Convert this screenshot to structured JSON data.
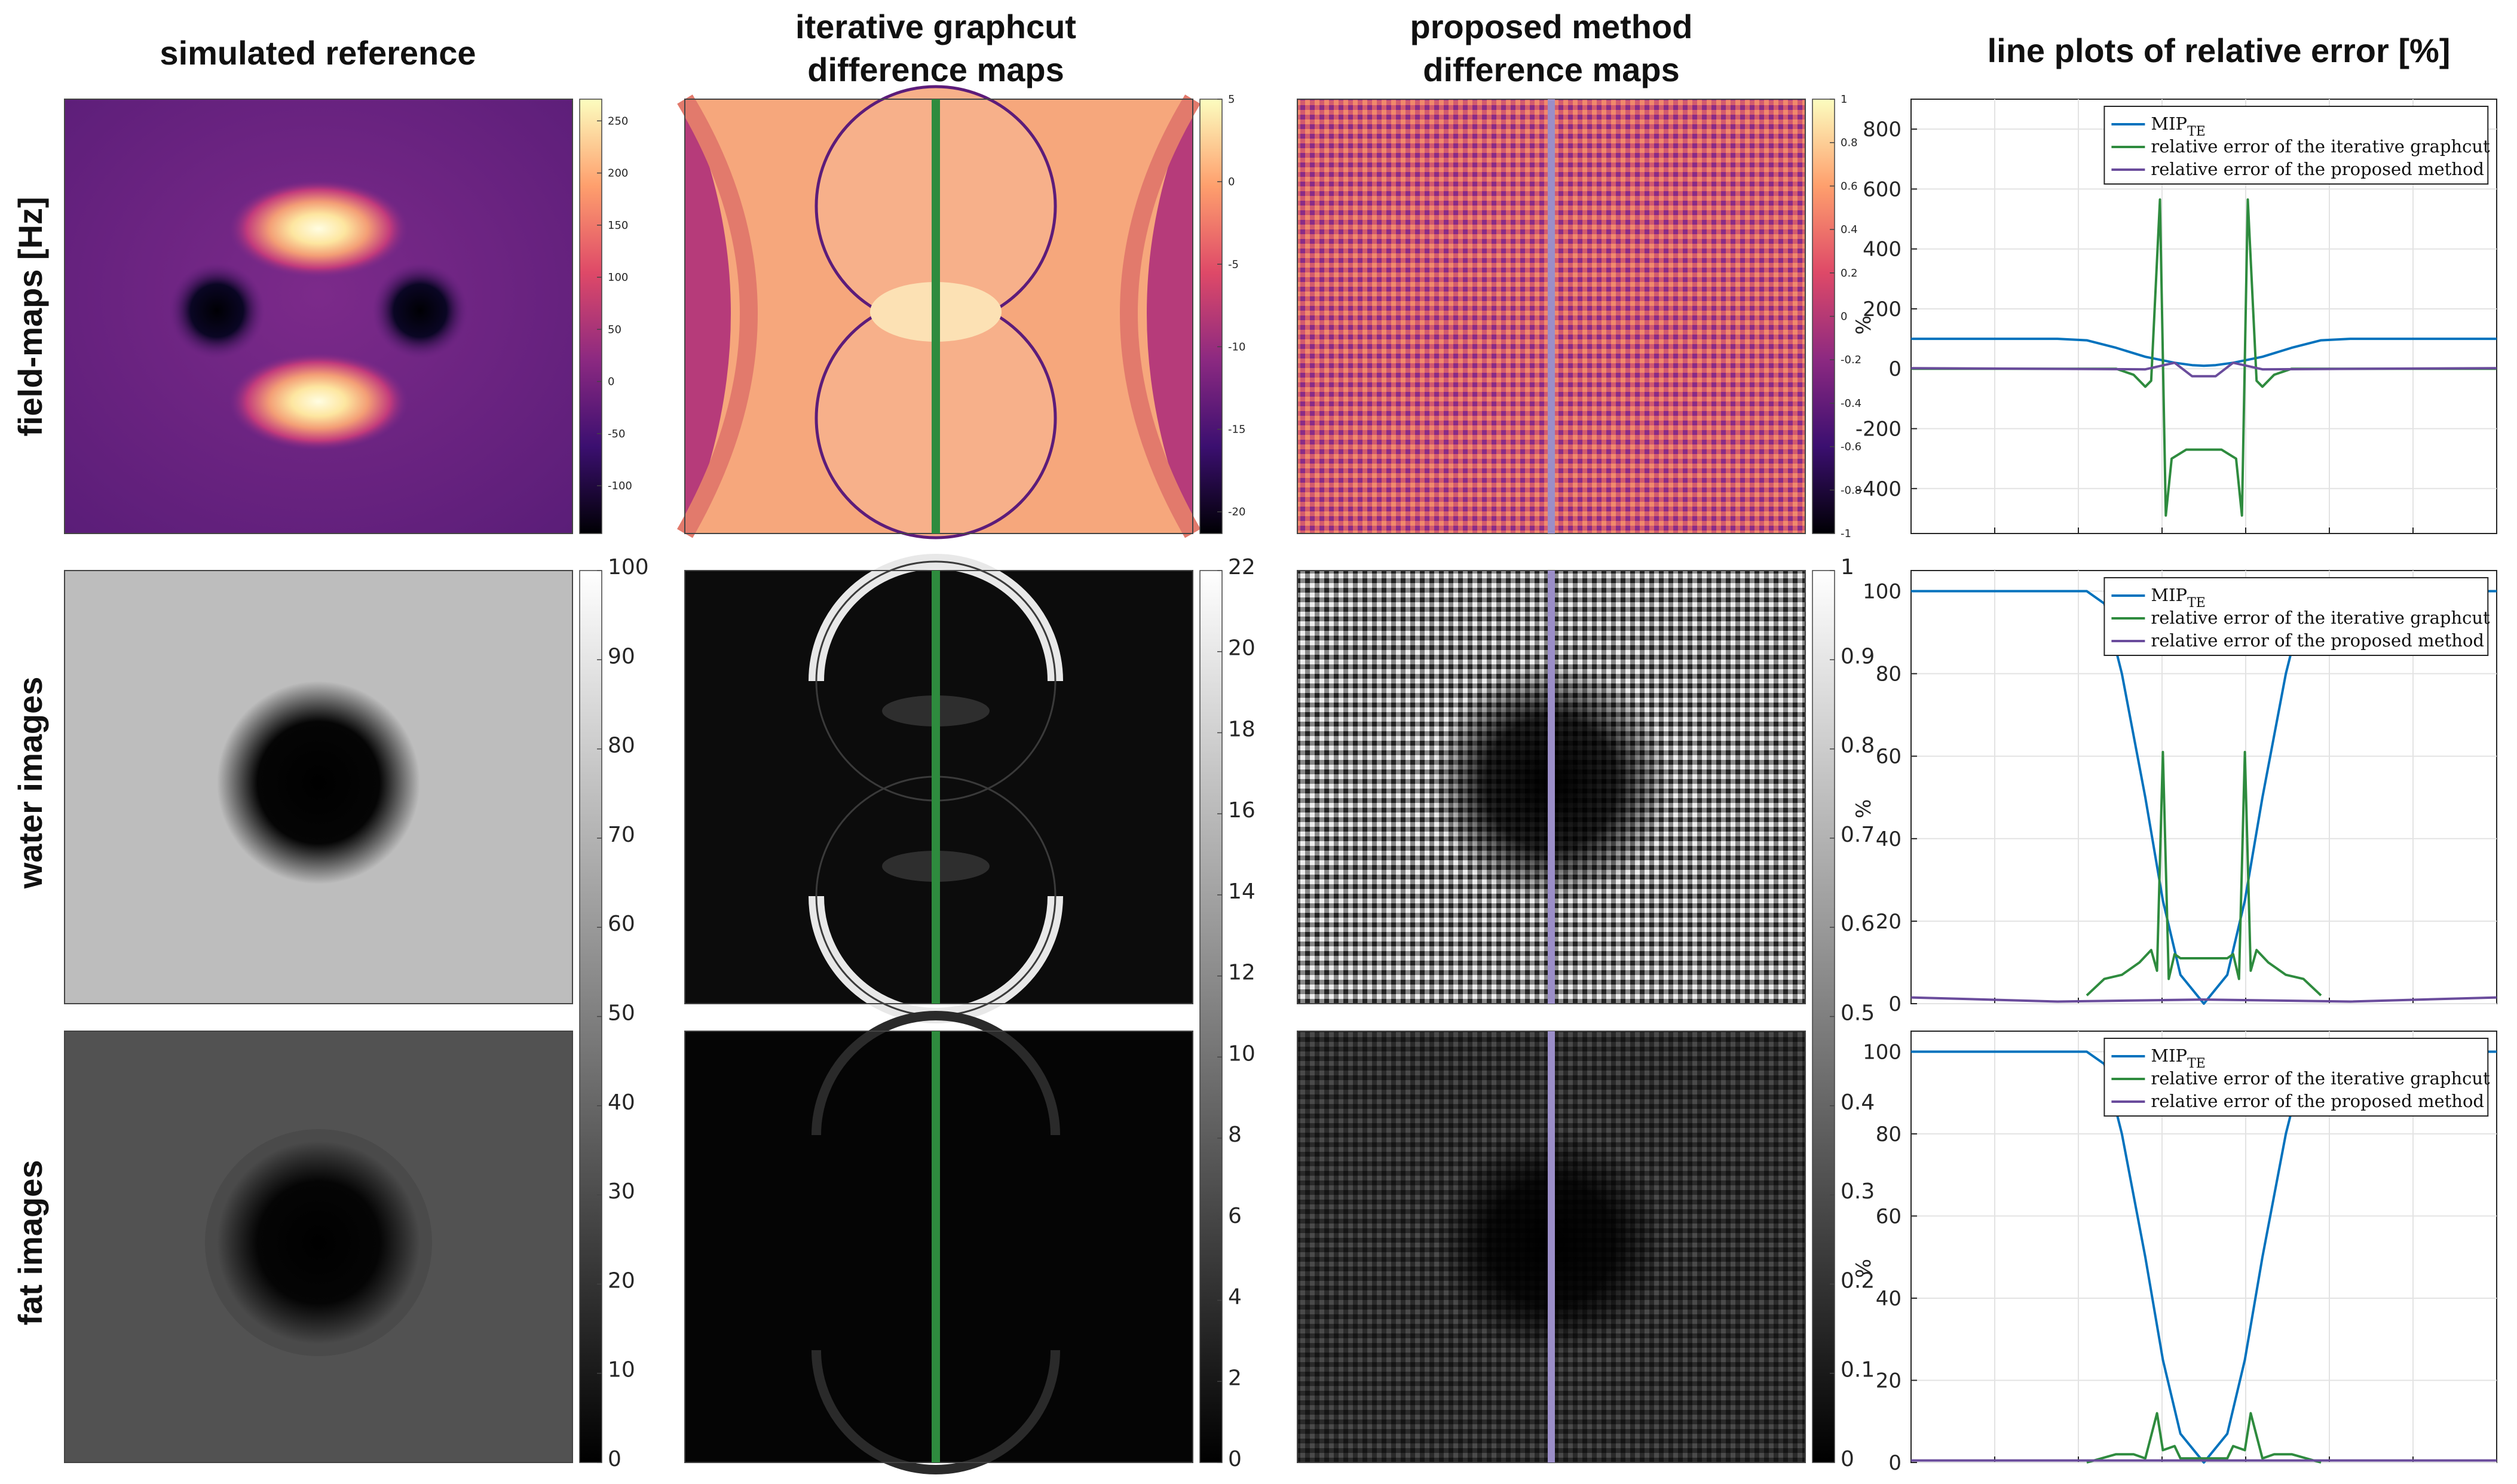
{
  "headers": {
    "col1": "simulated reference",
    "col2_line1": "iterative graphcut",
    "col2_line2": "difference maps",
    "col3_line1": "proposed method",
    "col3_line2": "difference maps",
    "col4": "line plots of relative error [%]"
  },
  "row_labels": [
    "field-maps [Hz]",
    "water images",
    "fat images"
  ],
  "colorbars": {
    "fieldmap_ref": {
      "ticks": [
        "250",
        "200",
        "150",
        "100",
        "50",
        "0",
        "-50",
        "-100"
      ]
    },
    "fieldmap_graphcut": {
      "ticks": [
        "5",
        "0",
        "-5",
        "-10",
        "-15",
        "-20"
      ]
    },
    "fieldmap_proposed": {
      "ticks": [
        "1",
        "0.8",
        "0.6",
        "0.4",
        "0.2",
        "0",
        "-0.2",
        "-0.4",
        "-0.6",
        "-0.8",
        "-1"
      ]
    },
    "gray_ref": {
      "ticks": [
        "100",
        "90",
        "80",
        "70",
        "60",
        "50",
        "40",
        "30",
        "20",
        "10",
        "0"
      ]
    },
    "gray_graphcut": {
      "ticks": [
        "22",
        "20",
        "18",
        "16",
        "14",
        "12",
        "10",
        "8",
        "6",
        "4",
        "2",
        "0"
      ]
    },
    "gray_proposed": {
      "ticks": [
        "1",
        "0.9",
        "0.8",
        "0.7",
        "0.6",
        "0.5",
        "0.4",
        "0.3",
        "0.2",
        "0.1",
        "0"
      ]
    }
  },
  "legend": {
    "mip": "MIP",
    "mip_sub": "TE",
    "graphcut": "relative error of the iterative graphcut",
    "proposed": "relative error of the proposed method"
  },
  "colors": {
    "mip": "#0072BD",
    "graphcut": "#2E8B3E",
    "proposed": "#6A4C9C"
  },
  "chart_data": [
    {
      "type": "line",
      "title": "field-maps [Hz]",
      "ylabel": "%",
      "ylim": [
        -550,
        900
      ],
      "yticks": [
        "800",
        "600",
        "400",
        "200",
        "0",
        "-200",
        "-400"
      ],
      "series": [
        {
          "name": "MIP_TE",
          "points": [
            [
              0,
              100
            ],
            [
              0.25,
              100
            ],
            [
              0.3,
              95
            ],
            [
              0.35,
              70
            ],
            [
              0.4,
              40
            ],
            [
              0.45,
              20
            ],
            [
              0.48,
              12
            ],
            [
              0.5,
              10
            ],
            [
              0.52,
              12
            ],
            [
              0.55,
              20
            ],
            [
              0.6,
              40
            ],
            [
              0.65,
              70
            ],
            [
              0.7,
              95
            ],
            [
              0.75,
              100
            ],
            [
              1,
              100
            ]
          ]
        },
        {
          "name": "relative error of the iterative graphcut",
          "points": [
            [
              0,
              0
            ],
            [
              0.35,
              0
            ],
            [
              0.38,
              -20
            ],
            [
              0.4,
              -60
            ],
            [
              0.41,
              -40
            ],
            [
              0.425,
              565
            ],
            [
              0.435,
              -490
            ],
            [
              0.445,
              -300
            ],
            [
              0.47,
              -270
            ],
            [
              0.53,
              -270
            ],
            [
              0.555,
              -300
            ],
            [
              0.565,
              -490
            ],
            [
              0.575,
              565
            ],
            [
              0.59,
              -40
            ],
            [
              0.6,
              -60
            ],
            [
              0.62,
              -20
            ],
            [
              0.65,
              0
            ],
            [
              1,
              0
            ]
          ]
        },
        {
          "name": "relative error of the proposed method",
          "points": [
            [
              0,
              2
            ],
            [
              0.4,
              -2
            ],
            [
              0.45,
              20
            ],
            [
              0.48,
              -25
            ],
            [
              0.52,
              -25
            ],
            [
              0.55,
              20
            ],
            [
              0.6,
              -2
            ],
            [
              1,
              2
            ]
          ]
        }
      ]
    },
    {
      "type": "line",
      "title": "water images",
      "ylabel": "%",
      "ylim": [
        0,
        105
      ],
      "yticks": [
        "100",
        "80",
        "60",
        "40",
        "20",
        "0"
      ],
      "series": [
        {
          "name": "MIP_TE",
          "points": [
            [
              0,
              100
            ],
            [
              0.3,
              100
            ],
            [
              0.33,
              97
            ],
            [
              0.36,
              80
            ],
            [
              0.4,
              50
            ],
            [
              0.43,
              25
            ],
            [
              0.46,
              7
            ],
            [
              0.5,
              0
            ],
            [
              0.54,
              7
            ],
            [
              0.57,
              25
            ],
            [
              0.6,
              50
            ],
            [
              0.64,
              80
            ],
            [
              0.67,
              97
            ],
            [
              0.7,
              100
            ],
            [
              1,
              100
            ]
          ]
        },
        {
          "name": "relative error of the iterative graphcut",
          "points": [
            [
              0.3,
              2
            ],
            [
              0.33,
              6
            ],
            [
              0.36,
              7
            ],
            [
              0.39,
              10
            ],
            [
              0.41,
              13
            ],
            [
              0.42,
              8
            ],
            [
              0.43,
              61
            ],
            [
              0.44,
              6
            ],
            [
              0.45,
              12
            ],
            [
              0.46,
              11
            ],
            [
              0.54,
              11
            ],
            [
              0.55,
              12
            ],
            [
              0.56,
              6
            ],
            [
              0.57,
              61
            ],
            [
              0.58,
              8
            ],
            [
              0.59,
              13
            ],
            [
              0.61,
              10
            ],
            [
              0.64,
              7
            ],
            [
              0.67,
              6
            ],
            [
              0.7,
              2
            ]
          ]
        },
        {
          "name": "relative error of the proposed method",
          "points": [
            [
              0,
              1.5
            ],
            [
              0.25,
              0.5
            ],
            [
              0.5,
              1
            ],
            [
              0.75,
              0.5
            ],
            [
              1,
              1.5
            ]
          ]
        }
      ]
    },
    {
      "type": "line",
      "title": "fat images",
      "ylabel": "%",
      "ylim": [
        0,
        105
      ],
      "yticks": [
        "100",
        "80",
        "60",
        "40",
        "20",
        "0"
      ],
      "series": [
        {
          "name": "MIP_TE",
          "points": [
            [
              0,
              100
            ],
            [
              0.3,
              100
            ],
            [
              0.33,
              97
            ],
            [
              0.36,
              80
            ],
            [
              0.4,
              50
            ],
            [
              0.43,
              25
            ],
            [
              0.46,
              7
            ],
            [
              0.5,
              0
            ],
            [
              0.54,
              7
            ],
            [
              0.57,
              25
            ],
            [
              0.6,
              50
            ],
            [
              0.64,
              80
            ],
            [
              0.67,
              97
            ],
            [
              0.7,
              100
            ],
            [
              1,
              100
            ]
          ]
        },
        {
          "name": "relative error of the iterative graphcut",
          "points": [
            [
              0.3,
              0
            ],
            [
              0.35,
              2
            ],
            [
              0.38,
              2
            ],
            [
              0.4,
              1
            ],
            [
              0.42,
              12
            ],
            [
              0.43,
              3
            ],
            [
              0.45,
              4
            ],
            [
              0.46,
              1
            ],
            [
              0.54,
              1
            ],
            [
              0.55,
              4
            ],
            [
              0.57,
              3
            ],
            [
              0.58,
              12
            ],
            [
              0.6,
              1
            ],
            [
              0.62,
              2
            ],
            [
              0.65,
              2
            ],
            [
              0.7,
              0
            ]
          ]
        },
        {
          "name": "relative error of the proposed method",
          "points": [
            [
              0,
              0.5
            ],
            [
              0.5,
              0.5
            ],
            [
              1,
              0.5
            ]
          ]
        }
      ]
    }
  ]
}
